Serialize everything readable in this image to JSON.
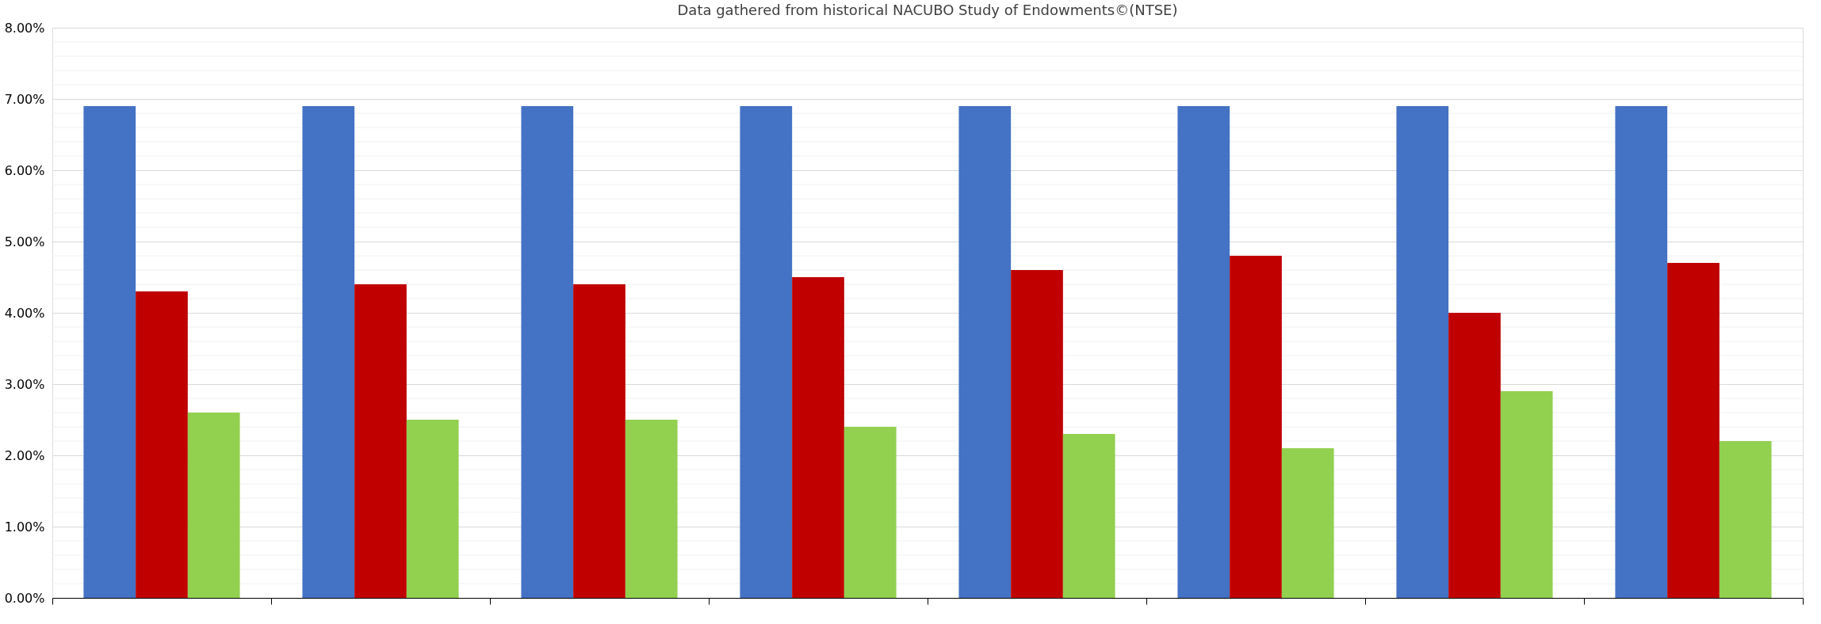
{
  "chart_data": {
    "type": "bar",
    "subtitle": "Data gathered from historical NACUBO Study of Endowments©(NTSE)",
    "categories": [
      null,
      null,
      null,
      null,
      null,
      null,
      null,
      null
    ],
    "series": [
      {
        "color": "#4472c4",
        "values": [
          6.9,
          6.9,
          6.9,
          6.9,
          6.9,
          6.9,
          6.9,
          6.9
        ]
      },
      {
        "color": "#c00000",
        "values": [
          4.3,
          4.4,
          4.4,
          4.5,
          4.6,
          4.8,
          4.0,
          4.7
        ]
      },
      {
        "color": "#92d050",
        "values": [
          2.6,
          2.5,
          2.5,
          2.4,
          2.3,
          2.1,
          2.9,
          2.2
        ]
      }
    ],
    "ylim": [
      0,
      8
    ],
    "yticks": [
      {
        "value": 0,
        "label": "0.00%"
      },
      {
        "value": 1,
        "label": "1.00%"
      },
      {
        "value": 2,
        "label": "2.00%"
      },
      {
        "value": 3,
        "label": "3.00%"
      },
      {
        "value": 4,
        "label": "4.00%"
      },
      {
        "value": 5,
        "label": "5.00%"
      },
      {
        "value": 6,
        "label": "6.00%"
      },
      {
        "value": 7,
        "label": "7.00%"
      },
      {
        "value": 8,
        "label": "8.00%"
      }
    ],
    "grid": "y",
    "legend": false
  }
}
